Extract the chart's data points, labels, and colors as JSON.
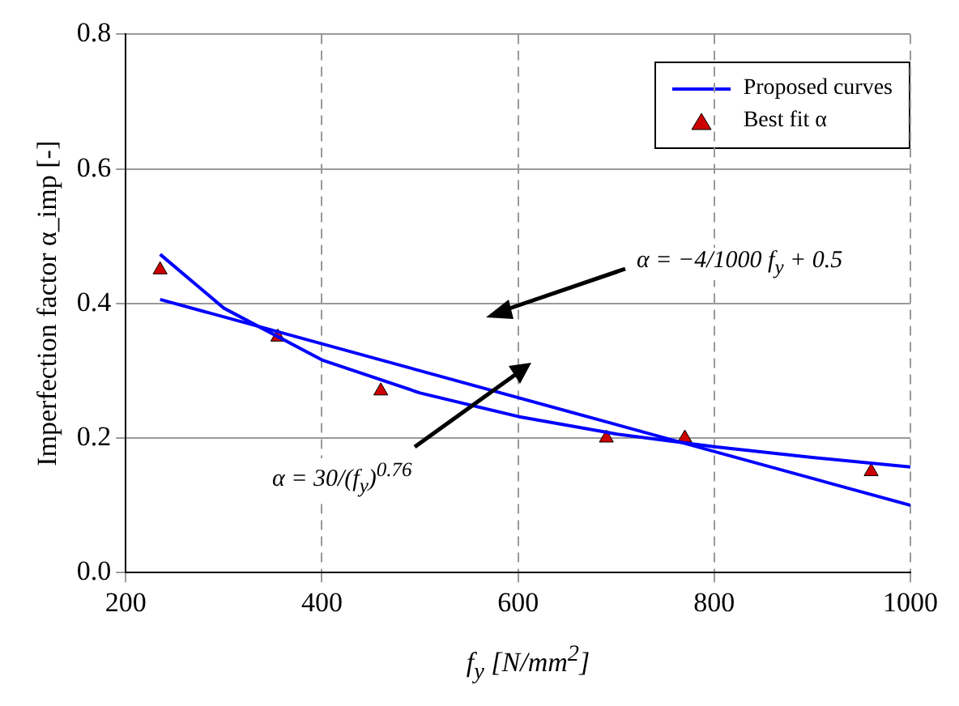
{
  "chart_data": {
    "type": "line",
    "xlabel": "f$_{y}$ [N/mm$^{2}$]",
    "ylabel": "Imperfection factor α_imp [-]",
    "xlim": [
      200,
      1000
    ],
    "xticks": [
      200,
      400,
      600,
      800,
      1000
    ],
    "ylim": [
      0,
      0.8
    ],
    "yticks": [
      {
        "value": 0,
        "label": "0.0"
      },
      {
        "value": 0.2,
        "label": "0.2"
      },
      {
        "value": 0.4,
        "label": "0.4"
      },
      {
        "value": 0.6,
        "label": "0.6"
      },
      {
        "value": 0.8,
        "label": "0.8"
      }
    ],
    "grid": true,
    "legend": "top right",
    "line_style": "solid",
    "series": [
      {
        "name": "Proposed curves",
        "type": "line",
        "color": "#0000ff",
        "x": [
          235,
          1000
        ],
        "values": [
          0.406,
          0.1
        ]
      },
      {
        "type": "line",
        "color": "#0000ff",
        "x": [
          235,
          300,
          400,
          500,
          600,
          700,
          800,
          900,
          1000
        ],
        "values": [
          0.473,
          0.393,
          0.316,
          0.267,
          0.232,
          0.206,
          0.187,
          0.171,
          0.157
        ]
      },
      {
        "name": "Best fit α",
        "type": "scatter",
        "color": "#cc0000",
        "marker": "triangle",
        "x": [
          235,
          355,
          460,
          690,
          770,
          960
        ],
        "values": [
          0.45,
          0.35,
          0.27,
          0.2,
          0.2,
          0.15
        ]
      }
    ],
    "annotations": [
      "α = −4/1000 f$_{y}$ + 0.5",
      "α = 30/(f$_{y}$)$^{0.76}$"
    ]
  }
}
